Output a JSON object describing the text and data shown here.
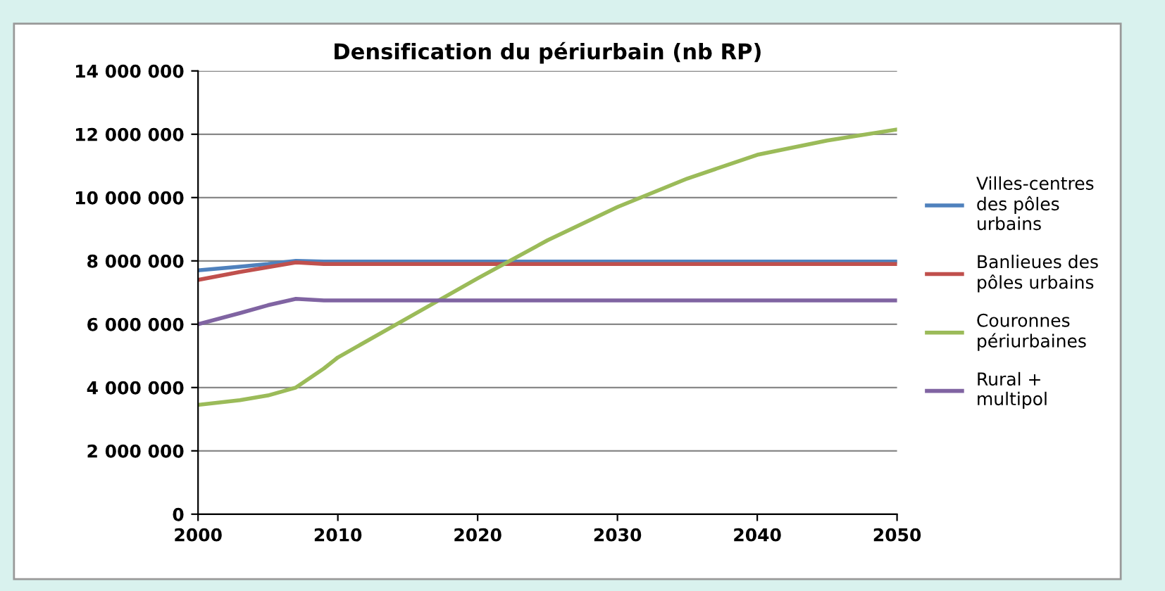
{
  "chart_data": {
    "type": "line",
    "title": "Densification du périurbain (nb RP)",
    "x": [
      2000,
      2003,
      2005,
      2007,
      2009,
      2010,
      2015,
      2020,
      2025,
      2030,
      2035,
      2040,
      2045,
      2050
    ],
    "series": [
      {
        "name": "Villes-centres des pôles urbains",
        "color": "#4f81bd",
        "values": [
          7700000,
          7820000,
          7900000,
          8000000,
          7980000,
          7980000,
          7980000,
          7980000,
          7980000,
          7980000,
          7980000,
          7980000,
          7980000,
          7980000
        ]
      },
      {
        "name": "Banlieues des pôles urbains",
        "color": "#c0504d",
        "values": [
          7400000,
          7650000,
          7800000,
          7950000,
          7900000,
          7900000,
          7900000,
          7900000,
          7900000,
          7900000,
          7900000,
          7900000,
          7900000,
          7900000
        ]
      },
      {
        "name": "Couronnes périurbaines",
        "color": "#9bbb59",
        "values": [
          3450000,
          3600000,
          3750000,
          4000000,
          4600000,
          4950000,
          6200000,
          7450000,
          8650000,
          9700000,
          10600000,
          11350000,
          11800000,
          12150000
        ]
      },
      {
        "name": "Rural + multipol",
        "color": "#8064a2",
        "values": [
          6000000,
          6350000,
          6600000,
          6800000,
          6750000,
          6750000,
          6750000,
          6750000,
          6750000,
          6750000,
          6750000,
          6750000,
          6750000,
          6750000
        ]
      }
    ],
    "xlim": [
      2000,
      2050
    ],
    "xticks": [
      2000,
      2010,
      2020,
      2030,
      2040,
      2050
    ],
    "ylim": [
      0,
      14000000
    ],
    "yticks": [
      {
        "value": 0,
        "label": "0"
      },
      {
        "value": 2000000,
        "label": "2 000 000"
      },
      {
        "value": 4000000,
        "label": "4 000 000"
      },
      {
        "value": 6000000,
        "label": "6 000 000"
      },
      {
        "value": 8000000,
        "label": "8 000 000"
      },
      {
        "value": 10000000,
        "label": "10 000 000"
      },
      {
        "value": 12000000,
        "label": "12 000 000"
      },
      {
        "value": 14000000,
        "label": "14 000 000"
      }
    ],
    "grid": "y",
    "legend": "right",
    "marker": "none",
    "line_style": "solid"
  }
}
